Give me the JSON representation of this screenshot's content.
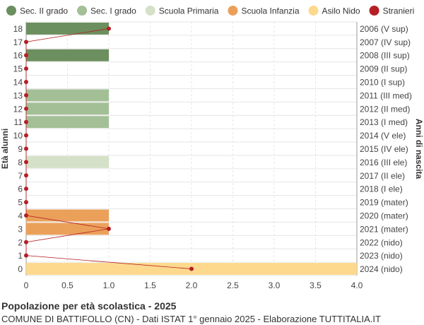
{
  "chart_data": {
    "type": "bar",
    "orientation": "horizontal",
    "title": "Popolazione per età scolastica - 2025",
    "subtitle": "COMUNE DI BATTIFOLLO (CN) - Dati ISTAT 1° gennaio 2025 - Elaborazione TUTTITALIA.IT",
    "ylabel_left": "Età alunni",
    "ylabel_right": "Anni di nascita",
    "xlim": [
      0,
      4
    ],
    "xticks": [
      "0",
      "0.5",
      "1.0",
      "1.5",
      "2.0",
      "2.5",
      "3.0",
      "3.5",
      "4.0"
    ],
    "legend_position": "top",
    "grid": true,
    "legend": [
      {
        "name": "Sec. II grado",
        "color": "#6b8f5e"
      },
      {
        "name": "Sec. I grado",
        "color": "#a3bf96"
      },
      {
        "name": "Scuola Primaria",
        "color": "#d4e1c8"
      },
      {
        "name": "Scuola Infanzia",
        "color": "#eba05a"
      },
      {
        "name": "Asilo Nido",
        "color": "#fdd98d"
      },
      {
        "name": "Stranieri",
        "color": "#b51f24"
      }
    ],
    "rows": [
      {
        "age": "18",
        "birth": "2006 (V sup)",
        "value": 1,
        "category": "Sec. II grado",
        "stranieri": 1
      },
      {
        "age": "17",
        "birth": "2007 (IV sup)",
        "value": 0,
        "category": "Sec. II grado",
        "stranieri": 0
      },
      {
        "age": "16",
        "birth": "2008 (III sup)",
        "value": 1,
        "category": "Sec. II grado",
        "stranieri": 0
      },
      {
        "age": "15",
        "birth": "2009 (II sup)",
        "value": 0,
        "category": "Sec. II grado",
        "stranieri": 0
      },
      {
        "age": "14",
        "birth": "2010 (I sup)",
        "value": 0,
        "category": "Sec. II grado",
        "stranieri": 0
      },
      {
        "age": "13",
        "birth": "2011 (III med)",
        "value": 1,
        "category": "Sec. I grado",
        "stranieri": 0
      },
      {
        "age": "12",
        "birth": "2012 (II med)",
        "value": 1,
        "category": "Sec. I grado",
        "stranieri": 0
      },
      {
        "age": "11",
        "birth": "2013 (I med)",
        "value": 1,
        "category": "Sec. I grado",
        "stranieri": 0
      },
      {
        "age": "10",
        "birth": "2014 (V ele)",
        "value": 0,
        "category": "Scuola Primaria",
        "stranieri": 0
      },
      {
        "age": "9",
        "birth": "2015 (IV ele)",
        "value": 0,
        "category": "Scuola Primaria",
        "stranieri": 0
      },
      {
        "age": "8",
        "birth": "2016 (III ele)",
        "value": 1,
        "category": "Scuola Primaria",
        "stranieri": 0
      },
      {
        "age": "7",
        "birth": "2017 (II ele)",
        "value": 0,
        "category": "Scuola Primaria",
        "stranieri": 0
      },
      {
        "age": "6",
        "birth": "2018 (I ele)",
        "value": 0,
        "category": "Scuola Primaria",
        "stranieri": 0
      },
      {
        "age": "5",
        "birth": "2019 (mater)",
        "value": 0,
        "category": "Scuola Infanzia",
        "stranieri": 0
      },
      {
        "age": "4",
        "birth": "2020 (mater)",
        "value": 1,
        "category": "Scuola Infanzia",
        "stranieri": 0
      },
      {
        "age": "3",
        "birth": "2021 (mater)",
        "value": 1,
        "category": "Scuola Infanzia",
        "stranieri": 1
      },
      {
        "age": "2",
        "birth": "2022 (nido)",
        "value": 0,
        "category": "Asilo Nido",
        "stranieri": 0
      },
      {
        "age": "1",
        "birth": "2023 (nido)",
        "value": 0,
        "category": "Asilo Nido",
        "stranieri": 0
      },
      {
        "age": "0",
        "birth": "2024 (nido)",
        "value": 4,
        "category": "Asilo Nido",
        "stranieri": 2
      }
    ]
  }
}
